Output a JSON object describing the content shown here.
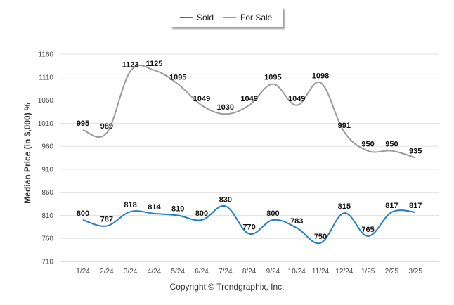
{
  "chart_data": {
    "type": "line",
    "ylabel": "Median Price (in $,000) %",
    "ylim": [
      710,
      1160
    ],
    "yticks": [
      710,
      760,
      810,
      860,
      910,
      960,
      1010,
      1060,
      1110,
      1160
    ],
    "categories": [
      "1/24",
      "2/24",
      "3/24",
      "4/24",
      "5/24",
      "6/24",
      "7/24",
      "8/24",
      "9/24",
      "10/24",
      "11/24",
      "12/24",
      "1/25",
      "2/25",
      "3/25"
    ],
    "series": [
      {
        "name": "Sold",
        "color": "#1f7fc6",
        "values": [
          800,
          787,
          818,
          814,
          810,
          800,
          830,
          770,
          800,
          783,
          750,
          815,
          765,
          817,
          817
        ]
      },
      {
        "name": "For Sale",
        "color": "#9a9a9a",
        "values": [
          995,
          989,
          1123,
          1125,
          1095,
          1049,
          1030,
          1049,
          1095,
          1049,
          1098,
          991,
          950,
          950,
          935
        ]
      }
    ],
    "legend_position": "top-center",
    "grid": true
  },
  "footer": {
    "copyright": "Copyright © Trendgraphix, Inc."
  }
}
